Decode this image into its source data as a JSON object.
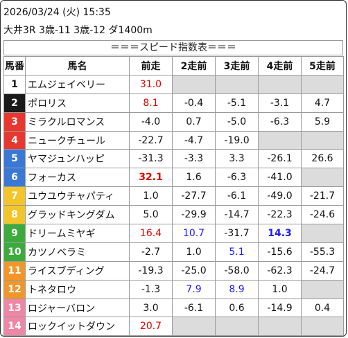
{
  "info": {
    "line1": "2026/03/24 (火) 15:35",
    "line2": "大井3R 3歳-11 3歳-12 ダ1400m"
  },
  "banner": "＝＝＝スピード指数表＝＝＝",
  "headers": [
    "馬番",
    "馬名",
    "前走",
    "2走前",
    "3走前",
    "4走前",
    "5走前"
  ],
  "colors": {
    "red": "#e00000",
    "blue": "#1a1aff",
    "empty": "#dcdcdc"
  },
  "rows": [
    {
      "num": "1",
      "color": "#ffffff",
      "textColor": "#111111",
      "name": "エムジェイベリー",
      "vals": [
        {
          "t": "31.0",
          "c": "red",
          "b": false
        },
        {
          "t": "",
          "c": "",
          "b": false,
          "e": true
        },
        {
          "t": "",
          "c": "",
          "b": false,
          "e": true
        },
        {
          "t": "",
          "c": "",
          "b": false,
          "e": true
        },
        {
          "t": "",
          "c": "",
          "b": false,
          "e": true
        }
      ]
    },
    {
      "num": "2",
      "color": "#1a1a1a",
      "textColor": "#ffffff",
      "name": "ポロリス",
      "vals": [
        {
          "t": "8.1",
          "c": "red",
          "b": false
        },
        {
          "t": "-0.4",
          "c": "",
          "b": false
        },
        {
          "t": "-5.1",
          "c": "",
          "b": false
        },
        {
          "t": "-3.1",
          "c": "",
          "b": false
        },
        {
          "t": "4.7",
          "c": "",
          "b": false
        }
      ]
    },
    {
      "num": "3",
      "color": "#e8372f",
      "textColor": "#ffffff",
      "name": "ミラクルロマンス",
      "vals": [
        {
          "t": "-4.0",
          "c": "",
          "b": false
        },
        {
          "t": "0.7",
          "c": "",
          "b": false
        },
        {
          "t": "-5.0",
          "c": "",
          "b": false
        },
        {
          "t": "-6.3",
          "c": "",
          "b": false
        },
        {
          "t": "5.9",
          "c": "",
          "b": false
        }
      ]
    },
    {
      "num": "4",
      "color": "#e8372f",
      "textColor": "#ffffff",
      "name": "ニュークチュール",
      "vals": [
        {
          "t": "-22.7",
          "c": "",
          "b": false
        },
        {
          "t": "-4.7",
          "c": "",
          "b": false
        },
        {
          "t": "-19.0",
          "c": "",
          "b": false
        },
        {
          "t": "",
          "c": "",
          "b": false,
          "e": true
        },
        {
          "t": "",
          "c": "",
          "b": false,
          "e": true
        }
      ]
    },
    {
      "num": "5",
      "color": "#3a78d6",
      "textColor": "#ffffff",
      "name": "ヤマジュンハッピ",
      "vals": [
        {
          "t": "-31.3",
          "c": "",
          "b": false
        },
        {
          "t": "-3.3",
          "c": "",
          "b": false
        },
        {
          "t": "3.3",
          "c": "",
          "b": false
        },
        {
          "t": "-26.1",
          "c": "",
          "b": false
        },
        {
          "t": "26.6",
          "c": "",
          "b": false
        }
      ]
    },
    {
      "num": "6",
      "color": "#3a78d6",
      "textColor": "#ffffff",
      "name": "フォーカス",
      "vals": [
        {
          "t": "32.1",
          "c": "red",
          "b": true
        },
        {
          "t": "1.6",
          "c": "",
          "b": false
        },
        {
          "t": "-6.3",
          "c": "",
          "b": false
        },
        {
          "t": "-41.0",
          "c": "",
          "b": false
        },
        {
          "t": "",
          "c": "",
          "b": false,
          "e": true
        }
      ]
    },
    {
      "num": "7",
      "color": "#f2c62a",
      "textColor": "#ffffff",
      "name": "ユウユウチャパティ",
      "vals": [
        {
          "t": "1.0",
          "c": "",
          "b": false
        },
        {
          "t": "-27.7",
          "c": "",
          "b": false
        },
        {
          "t": "-6.1",
          "c": "",
          "b": false
        },
        {
          "t": "-49.0",
          "c": "",
          "b": false
        },
        {
          "t": "-21.7",
          "c": "",
          "b": false
        }
      ]
    },
    {
      "num": "8",
      "color": "#f2c62a",
      "textColor": "#ffffff",
      "name": "グラッドキングダム",
      "vals": [
        {
          "t": "5.0",
          "c": "",
          "b": false
        },
        {
          "t": "-29.9",
          "c": "",
          "b": false
        },
        {
          "t": "-14.7",
          "c": "",
          "b": false
        },
        {
          "t": "-22.3",
          "c": "",
          "b": false
        },
        {
          "t": "-24.6",
          "c": "",
          "b": false
        }
      ]
    },
    {
      "num": "9",
      "color": "#3cab3c",
      "textColor": "#ffffff",
      "name": "ドリームミヤギ",
      "vals": [
        {
          "t": "16.4",
          "c": "red",
          "b": false
        },
        {
          "t": "10.7",
          "c": "blue",
          "b": false
        },
        {
          "t": "-31.7",
          "c": "",
          "b": false
        },
        {
          "t": "14.3",
          "c": "blue",
          "b": true
        },
        {
          "t": "",
          "c": "",
          "b": false,
          "e": true
        }
      ]
    },
    {
      "num": "10",
      "color": "#3cab3c",
      "textColor": "#ffffff",
      "name": "カツノベラミ",
      "vals": [
        {
          "t": "-2.7",
          "c": "",
          "b": false
        },
        {
          "t": "1.0",
          "c": "",
          "b": false
        },
        {
          "t": "5.1",
          "c": "blue",
          "b": false
        },
        {
          "t": "-15.6",
          "c": "",
          "b": false
        },
        {
          "t": "-55.3",
          "c": "",
          "b": false
        }
      ]
    },
    {
      "num": "11",
      "color": "#f0962a",
      "textColor": "#ffffff",
      "name": "ライスブディング",
      "vals": [
        {
          "t": "-19.3",
          "c": "",
          "b": false
        },
        {
          "t": "-25.0",
          "c": "",
          "b": false
        },
        {
          "t": "-58.0",
          "c": "",
          "b": false
        },
        {
          "t": "-62.3",
          "c": "",
          "b": false
        },
        {
          "t": "-24.7",
          "c": "",
          "b": false
        }
      ]
    },
    {
      "num": "12",
      "color": "#f0962a",
      "textColor": "#ffffff",
      "name": "トネタロウ",
      "vals": [
        {
          "t": "-1.3",
          "c": "",
          "b": false
        },
        {
          "t": "7.9",
          "c": "blue",
          "b": false
        },
        {
          "t": "8.9",
          "c": "blue",
          "b": false
        },
        {
          "t": "1.0",
          "c": "",
          "b": false
        },
        {
          "t": "",
          "c": "",
          "b": false,
          "e": true
        }
      ]
    },
    {
      "num": "13",
      "color": "#ee86a5",
      "textColor": "#ffffff",
      "name": "ロジャーバロン",
      "vals": [
        {
          "t": "3.0",
          "c": "",
          "b": false
        },
        {
          "t": "-6.1",
          "c": "",
          "b": false
        },
        {
          "t": "0.6",
          "c": "",
          "b": false
        },
        {
          "t": "-14.9",
          "c": "",
          "b": false
        },
        {
          "t": "0.4",
          "c": "",
          "b": false
        }
      ]
    },
    {
      "num": "14",
      "color": "#ee86a5",
      "textColor": "#ffffff",
      "name": "ロックイットダウン",
      "vals": [
        {
          "t": "20.7",
          "c": "red",
          "b": false
        },
        {
          "t": "",
          "c": "",
          "b": false,
          "e": true
        },
        {
          "t": "",
          "c": "",
          "b": false,
          "e": true
        },
        {
          "t": "",
          "c": "",
          "b": false,
          "e": true
        },
        {
          "t": "",
          "c": "",
          "b": false,
          "e": true
        }
      ]
    }
  ]
}
